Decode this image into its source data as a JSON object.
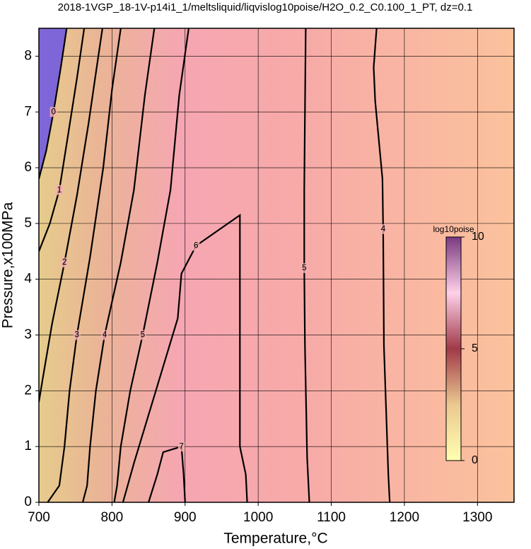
{
  "chart_data": {
    "type": "contour",
    "title": "2018-1VGP_18-1V-p14i1_1/meltsliquid/liqvislog10poise/H2O_0.2_C0.100_1_PT, dz=0.1",
    "x_label": "Temperature,°C",
    "y_label": "Pressure,x100MPa",
    "xlim": [
      700,
      1350
    ],
    "ylim": [
      0,
      8.5
    ],
    "xticks": [
      700,
      800,
      900,
      1000,
      1100,
      1200,
      1300
    ],
    "yticks": [
      0,
      1,
      2,
      3,
      4,
      5,
      6,
      7,
      8
    ],
    "grid": true,
    "contours": [
      {
        "level": 0,
        "x": [
          738,
          730,
          720,
          710,
          700
        ],
        "y": [
          8.5,
          7.8,
          7.0,
          6.3,
          5.8
        ]
      },
      {
        "level": 1,
        "x": [
          762,
          752,
          740,
          728,
          715,
          700
        ],
        "y": [
          8.5,
          7.6,
          6.6,
          5.6,
          5.0,
          4.5
        ]
      },
      {
        "level": 2,
        "x": [
          787,
          778,
          768,
          752,
          735,
          718,
          705,
          700
        ],
        "y": [
          8.5,
          7.7,
          6.8,
          5.5,
          4.3,
          3.2,
          2.2,
          1.8
        ]
      },
      {
        "level": 3,
        "x": [
          812,
          800,
          788,
          770,
          752,
          742,
          735,
          728,
          712
        ],
        "y": [
          8.5,
          7.4,
          6.0,
          4.4,
          3.0,
          2.0,
          1.0,
          0.3,
          0
        ]
      },
      {
        "level": 4,
        "x": [
          858,
          845,
          830,
          812,
          790,
          778,
          770,
          766,
          760
        ],
        "y": [
          8.5,
          7.3,
          5.6,
          4.3,
          3.0,
          2.0,
          1.0,
          0.3,
          0
        ]
      },
      {
        "level": 5,
        "x": [
          905,
          892,
          880,
          862,
          842,
          825,
          812,
          807,
          803
        ],
        "y": [
          8.5,
          7.3,
          5.6,
          4.3,
          3.0,
          2.0,
          1.0,
          0.3,
          0
        ]
      },
      {
        "level": 6,
        "x": [
          815,
          830,
          860,
          890,
          895,
          915,
          975,
          975,
          975,
          983,
          985
        ],
        "y": [
          0,
          0.7,
          2.0,
          3.3,
          4.1,
          4.6,
          5.15,
          3.7,
          1.0,
          0.5,
          0
        ]
      },
      {
        "level": 7,
        "x": [
          850,
          862,
          870,
          895,
          898,
          900
        ],
        "y": [
          0,
          0.5,
          0.9,
          1.0,
          0.5,
          0
        ]
      },
      {
        "level": 5,
        "x": [
          1065,
          1064,
          1063,
          1063,
          1064,
          1067,
          1070
        ],
        "y": [
          8.5,
          7.0,
          5.6,
          4.2,
          2.8,
          0.8,
          0
        ]
      },
      {
        "level": 4,
        "x": [
          1162,
          1158,
          1160,
          1170,
          1171,
          1172,
          1178,
          1180
        ],
        "y": [
          8.5,
          7.8,
          7.2,
          5.8,
          4.9,
          2.8,
          0.5,
          0
        ]
      }
    ],
    "colorbar": {
      "label": "log10poise",
      "lim": [
        0,
        10
      ],
      "ticks": [
        0,
        5,
        10
      ]
    }
  }
}
